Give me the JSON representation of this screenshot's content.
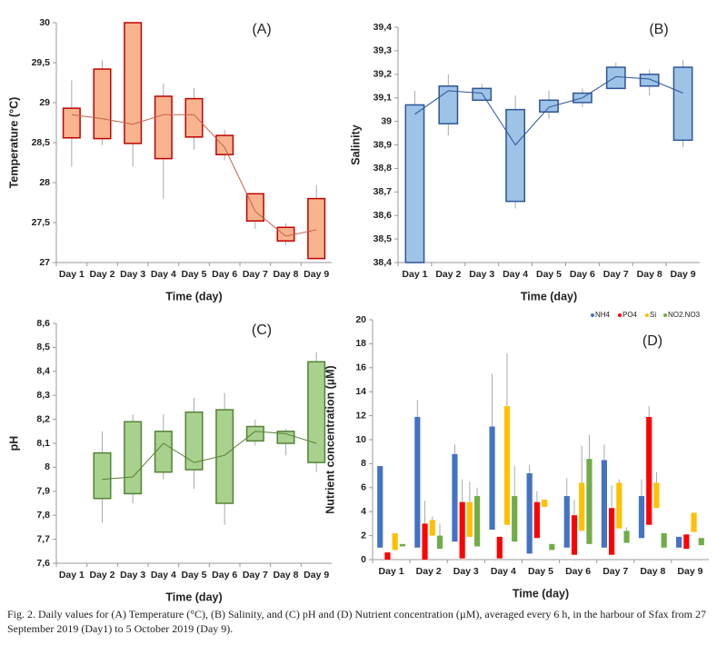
{
  "chart_data": [
    {
      "type": "box",
      "panel_label": "(A)",
      "ylabel": "Temperature (°C)",
      "xlabel": "Time (day)",
      "categories": [
        "Day 1",
        "Day 2",
        "Day 3",
        "Day 4",
        "Day 5",
        "Day 6",
        "Day 7",
        "Day 8",
        "Day 9"
      ],
      "ylim": [
        27,
        30
      ],
      "yticks": [
        27,
        {
          "value": 27.5,
          "label": "27,5"
        },
        28,
        {
          "value": 28.5,
          "label": "28,5"
        },
        29,
        {
          "value": 29.5,
          "label": "29,5"
        },
        30
      ],
      "series": [
        {
          "color": "#f7b48e",
          "edge": "#c00000",
          "line_color": "#c8604a",
          "high": [
            28.93,
            29.42,
            30.0,
            29.08,
            29.05,
            28.59,
            27.86,
            27.44,
            27.8
          ],
          "low": [
            28.56,
            28.55,
            28.49,
            28.3,
            28.57,
            28.35,
            27.52,
            27.27,
            27.05
          ],
          "max": [
            29.28,
            29.53,
            30.0,
            29.24,
            29.18,
            28.66,
            27.86,
            27.49,
            27.97
          ],
          "min": [
            28.2,
            28.47,
            28.2,
            27.8,
            28.41,
            28.28,
            27.42,
            27.22,
            27.05
          ],
          "mean": [
            28.85,
            28.8,
            28.73,
            28.85,
            28.85,
            28.44,
            27.64,
            27.33,
            27.41
          ]
        }
      ]
    },
    {
      "type": "box",
      "panel_label": "(B)",
      "ylabel": "Salinity",
      "xlabel": "Time (day)",
      "categories": [
        "Day 1",
        "Day 2",
        "Day 3",
        "Day 4",
        "Day 5",
        "Day 6",
        "Day 7",
        "Day 8",
        "Day 9"
      ],
      "ylim": [
        38.4,
        39.4
      ],
      "yticks": [
        {
          "value": 38.4,
          "label": "38,4"
        },
        {
          "value": 38.5,
          "label": "38,5"
        },
        {
          "value": 38.6,
          "label": "38,6"
        },
        {
          "value": 38.7,
          "label": "38,7"
        },
        {
          "value": 38.8,
          "label": "38,8"
        },
        {
          "value": 38.9,
          "label": "38,9"
        },
        39,
        {
          "value": 39.1,
          "label": "39,1"
        },
        {
          "value": 39.2,
          "label": "39,2"
        },
        {
          "value": 39.3,
          "label": "39,3"
        },
        {
          "value": 39.4,
          "label": "39,4"
        }
      ],
      "series": [
        {
          "color": "#9dc3e6",
          "edge": "#2e5597",
          "line_color": "#2e5597",
          "high": [
            39.07,
            39.15,
            39.14,
            39.05,
            39.09,
            39.12,
            39.23,
            39.2,
            39.23
          ],
          "low": [
            38.4,
            38.99,
            39.09,
            38.66,
            39.04,
            39.08,
            39.14,
            39.15,
            38.92
          ],
          "max": [
            39.13,
            39.2,
            39.16,
            39.11,
            39.13,
            39.14,
            39.25,
            39.22,
            39.26
          ],
          "min": [
            38.4,
            38.94,
            39.09,
            38.63,
            39.01,
            39.06,
            39.14,
            39.11,
            38.89
          ],
          "mean": [
            39.03,
            39.13,
            39.12,
            38.9,
            39.06,
            39.1,
            39.19,
            39.18,
            39.12
          ]
        }
      ]
    },
    {
      "type": "box",
      "panel_label": "(C)",
      "ylabel": "pH",
      "xlabel": "Time (day)",
      "categories": [
        "Day 1",
        "Day 2",
        "Day 3",
        "Day 4",
        "Day 5",
        "Day 6",
        "Day 7",
        "Day 8",
        "Day 9"
      ],
      "ylim": [
        7.6,
        8.6
      ],
      "yticks": [
        {
          "value": 7.6,
          "label": "7,6"
        },
        {
          "value": 7.7,
          "label": "7,7"
        },
        {
          "value": 7.8,
          "label": "7,8"
        },
        {
          "value": 7.9,
          "label": "7,9"
        },
        8,
        {
          "value": 8.1,
          "label": "8,1"
        },
        {
          "value": 8.2,
          "label": "8,2"
        },
        {
          "value": 8.3,
          "label": "8,3"
        },
        {
          "value": 8.4,
          "label": "8,4"
        },
        {
          "value": 8.5,
          "label": "8,5"
        },
        {
          "value": 8.6,
          "label": "8,6"
        }
      ],
      "series": [
        {
          "color": "#a9d18e",
          "edge": "#548235",
          "line_color": "#548235",
          "high": [
            null,
            8.06,
            8.19,
            8.15,
            8.23,
            8.24,
            8.17,
            8.15,
            8.44
          ],
          "low": [
            null,
            7.87,
            7.89,
            7.98,
            7.99,
            7.85,
            8.11,
            8.1,
            8.02
          ],
          "max": [
            null,
            8.15,
            8.22,
            8.22,
            8.29,
            8.31,
            8.2,
            8.16,
            8.48
          ],
          "min": [
            null,
            7.77,
            7.85,
            7.95,
            7.91,
            7.76,
            8.09,
            8.05,
            7.98
          ],
          "mean": [
            null,
            7.95,
            7.96,
            8.1,
            8.02,
            8.05,
            8.15,
            8.14,
            8.1
          ]
        }
      ]
    },
    {
      "type": "box",
      "panel_label": "(D)",
      "ylabel": "Nutrient concentration (µM)",
      "xlabel": "Time (day)",
      "categories": [
        "Day 1",
        "Day 2",
        "Day 3",
        "Day 4",
        "Day 5",
        "Day 6",
        "Day 7",
        "Day 8",
        "Day 9"
      ],
      "ylim": [
        0,
        20
      ],
      "yticks": [
        0,
        2,
        4,
        6,
        8,
        10,
        12,
        14,
        16,
        18,
        20
      ],
      "series": [
        {
          "name": "NH4",
          "color": "#4472c4",
          "high": [
            7.8,
            11.9,
            8.8,
            11.1,
            7.2,
            5.3,
            8.3,
            5.3,
            1.9
          ],
          "low": [
            1.0,
            1.0,
            1.5,
            2.5,
            0.5,
            1.0,
            1.0,
            1.8,
            1.0
          ],
          "max": [
            null,
            13.3,
            9.6,
            15.5,
            7.9,
            6.8,
            9.6,
            6.7,
            null
          ]
        },
        {
          "name": "PO4",
          "color": "#ff0000",
          "high": [
            0.6,
            3.0,
            4.8,
            1.9,
            4.8,
            3.7,
            4.3,
            11.9,
            2.1
          ],
          "low": [
            0,
            0,
            0.1,
            0.1,
            1.8,
            0.4,
            0.4,
            2.9,
            0.9
          ],
          "max": [
            null,
            4.9,
            6.7,
            null,
            5.7,
            5.0,
            6.2,
            12.8,
            null
          ]
        },
        {
          "name": "Si",
          "color": "#ffc000",
          "high": [
            2.2,
            3.3,
            4.8,
            12.8,
            5.0,
            6.4,
            6.4,
            6.4,
            3.9
          ],
          "low": [
            0.8,
            2.0,
            1.9,
            2.9,
            4.4,
            2.4,
            2.6,
            4.3,
            2.3
          ],
          "max": [
            null,
            3.6,
            6.5,
            17.2,
            null,
            9.5,
            6.7,
            7.3,
            null
          ]
        },
        {
          "name": "NO2.NO3",
          "color": "#70ad47",
          "high": [
            1.3,
            2.0,
            5.3,
            5.3,
            1.3,
            8.4,
            2.4,
            2.2,
            1.8
          ],
          "low": [
            1.1,
            0.9,
            1.1,
            1.5,
            0.8,
            1.3,
            1.4,
            1.0,
            1.2
          ],
          "max": [
            null,
            3.0,
            6.0,
            7.8,
            null,
            10.4,
            2.7,
            null,
            null
          ]
        }
      ]
    }
  ],
  "caption": "Fig. 2. Daily values for (A) Temperature (°C), (B) Salinity, and (C) pH and (D) Nutrient concentration (µM), averaged every 6 h, in the harbour of Sfax from 27 September 2019 (Day1) to 5 October 2019 (Day 9)."
}
